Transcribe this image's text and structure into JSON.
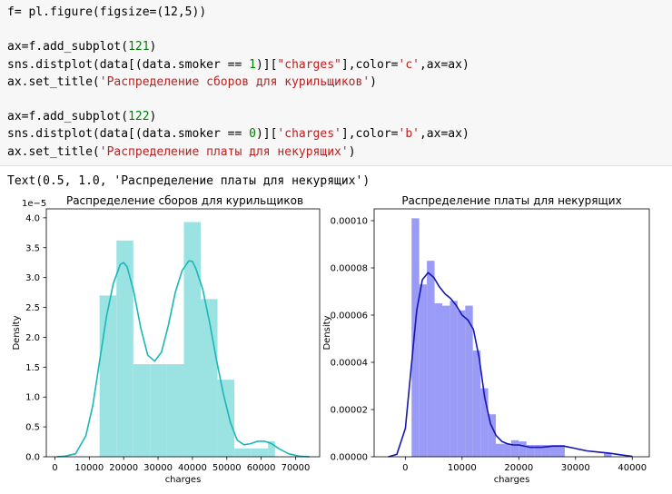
{
  "code": {
    "lines": [
      [
        {
          "t": "f= pl.figure(figsize=(12,5))",
          "c": ""
        }
      ],
      [
        {
          "t": "",
          "c": ""
        }
      ],
      [
        {
          "t": "ax=f.add_subplot(",
          "c": ""
        },
        {
          "t": "121",
          "c": "n"
        },
        {
          "t": ")",
          "c": ""
        }
      ],
      [
        {
          "t": "sns.distplot(data[(data.smoker == ",
          "c": ""
        },
        {
          "t": "1",
          "c": "n"
        },
        {
          "t": ")][",
          "c": ""
        },
        {
          "t": "\"charges\"",
          "c": "s"
        },
        {
          "t": "],color=",
          "c": ""
        },
        {
          "t": "'c'",
          "c": "s"
        },
        {
          "t": ",ax=ax)",
          "c": ""
        }
      ],
      [
        {
          "t": "ax.set_title(",
          "c": ""
        },
        {
          "t": "'Распределение сборов для курильщиков'",
          "c": "s"
        },
        {
          "t": ")",
          "c": ""
        }
      ],
      [
        {
          "t": "",
          "c": ""
        }
      ],
      [
        {
          "t": "ax=f.add_subplot(",
          "c": ""
        },
        {
          "t": "122",
          "c": "n"
        },
        {
          "t": ")",
          "c": ""
        }
      ],
      [
        {
          "t": "sns.distplot(data[(data.smoker == ",
          "c": ""
        },
        {
          "t": "0",
          "c": "n"
        },
        {
          "t": ")][",
          "c": ""
        },
        {
          "t": "'charges'",
          "c": "s"
        },
        {
          "t": "],color=",
          "c": ""
        },
        {
          "t": "'b'",
          "c": "s"
        },
        {
          "t": ",ax=ax)",
          "c": ""
        }
      ],
      [
        {
          "t": "ax.set_title(",
          "c": ""
        },
        {
          "t": "'Распределение платы для некурящих'",
          "c": "s"
        },
        {
          "t": ")",
          "c": ""
        }
      ]
    ]
  },
  "output": {
    "text": "Text(0.5, 1.0, 'Распределение платы для некурящих')"
  },
  "colors": {
    "smoker_hist": "#9be3e2",
    "smoker_line": "#1bb6b6",
    "nonsmoker_hist": "#9a9af7",
    "nonsmoker_line": "#1515b0"
  },
  "chart_data": [
    {
      "type": "bar",
      "title": "Распределение сборов для курильщиков",
      "xlabel": "charges",
      "ylabel": "Density",
      "y_offset_text": "1e−5",
      "xlim": [
        -2500,
        77000
      ],
      "ylim": [
        0,
        4.15
      ],
      "xticks": [
        0,
        10000,
        20000,
        30000,
        40000,
        50000,
        60000,
        70000
      ],
      "xticklabels": [
        "0",
        "10000",
        "20000",
        "30000",
        "40000",
        "50000",
        "60000",
        "70000"
      ],
      "yticks": [
        0,
        0.5,
        1.0,
        1.5,
        2.0,
        2.5,
        3.0,
        3.5,
        4.0
      ],
      "yticklabels": [
        "0.0",
        "0.5",
        "1.0",
        "1.5",
        "2.0",
        "2.5",
        "3.0",
        "3.5",
        "4.0"
      ],
      "hist_bins": [
        {
          "x0": 13000,
          "x1": 17900,
          "h": 2.7
        },
        {
          "x0": 17900,
          "x1": 22800,
          "h": 3.62
        },
        {
          "x0": 22800,
          "x1": 27700,
          "h": 1.55
        },
        {
          "x0": 27700,
          "x1": 32600,
          "h": 1.55
        },
        {
          "x0": 32600,
          "x1": 37500,
          "h": 1.55
        },
        {
          "x0": 37500,
          "x1": 42400,
          "h": 3.93
        },
        {
          "x0": 42400,
          "x1": 47300,
          "h": 2.64
        },
        {
          "x0": 47300,
          "x1": 52200,
          "h": 1.29
        },
        {
          "x0": 52200,
          "x1": 57100,
          "h": 0.14
        },
        {
          "x0": 57100,
          "x1": 62000,
          "h": 0.14
        },
        {
          "x0": 62000,
          "x1": 64000,
          "h": 0.26
        }
      ],
      "kde": {
        "x": [
          500,
          3000,
          6000,
          9000,
          11000,
          13000,
          15000,
          17000,
          19000,
          20000,
          21000,
          23000,
          25000,
          27000,
          29000,
          31000,
          33000,
          35000,
          37000,
          39000,
          40000,
          41000,
          43000,
          45000,
          47000,
          49000,
          51000,
          53000,
          55000,
          57000,
          59000,
          61000,
          63000,
          65000,
          68000,
          71000,
          74000
        ],
        "y": [
          0.0,
          0.01,
          0.05,
          0.35,
          0.85,
          1.6,
          2.35,
          2.9,
          3.22,
          3.25,
          3.18,
          2.75,
          2.15,
          1.7,
          1.6,
          1.75,
          2.2,
          2.75,
          3.12,
          3.28,
          3.27,
          3.15,
          2.8,
          2.25,
          1.62,
          1.05,
          0.58,
          0.28,
          0.2,
          0.22,
          0.26,
          0.26,
          0.22,
          0.14,
          0.05,
          0.01,
          0.0
        ]
      }
    },
    {
      "type": "bar",
      "title": "Распределение платы для некурящих",
      "xlabel": "charges",
      "ylabel": "Density",
      "xlim": [
        -5500,
        43000
      ],
      "ylim": [
        0,
        0.000105
      ],
      "xticks": [
        0,
        10000,
        20000,
        30000,
        40000
      ],
      "xticklabels": [
        "0",
        "10000",
        "20000",
        "30000",
        "40000"
      ],
      "yticks": [
        0,
        2e-05,
        4e-05,
        6e-05,
        8e-05,
        0.0001
      ],
      "yticklabels": [
        "0.00000",
        "0.00002",
        "0.00004",
        "0.00006",
        "0.00008",
        "0.00010"
      ],
      "hist_bins": [
        {
          "x0": 1100,
          "x1": 2450,
          "h": 0.000101
        },
        {
          "x0": 2450,
          "x1": 3800,
          "h": 7.3e-05
        },
        {
          "x0": 3800,
          "x1": 5150,
          "h": 8.3e-05
        },
        {
          "x0": 5150,
          "x1": 6500,
          "h": 6.5e-05
        },
        {
          "x0": 6500,
          "x1": 7850,
          "h": 6.4e-05
        },
        {
          "x0": 7850,
          "x1": 9200,
          "h": 6.6e-05
        },
        {
          "x0": 9200,
          "x1": 10550,
          "h": 6.2e-05
        },
        {
          "x0": 10550,
          "x1": 11900,
          "h": 6.4e-05
        },
        {
          "x0": 11900,
          "x1": 13250,
          "h": 4.5e-05
        },
        {
          "x0": 13250,
          "x1": 14600,
          "h": 2.9e-05
        },
        {
          "x0": 14600,
          "x1": 15950,
          "h": 1.8e-05
        },
        {
          "x0": 15950,
          "x1": 17300,
          "h": 5.5e-06
        },
        {
          "x0": 17300,
          "x1": 18650,
          "h": 5.5e-06
        },
        {
          "x0": 18650,
          "x1": 20000,
          "h": 7e-06
        },
        {
          "x0": 20000,
          "x1": 21350,
          "h": 6.5e-06
        },
        {
          "x0": 21350,
          "x1": 22700,
          "h": 5e-06
        },
        {
          "x0": 22700,
          "x1": 24050,
          "h": 5e-06
        },
        {
          "x0": 24050,
          "x1": 25400,
          "h": 5e-06
        },
        {
          "x0": 25400,
          "x1": 26750,
          "h": 5e-06
        },
        {
          "x0": 26750,
          "x1": 28100,
          "h": 5e-06
        },
        {
          "x0": 35000,
          "x1": 36350,
          "h": 1.5e-06
        }
      ],
      "kde": {
        "x": [
          -3000,
          -1500,
          0,
          1000,
          2000,
          3000,
          4000,
          5000,
          6000,
          7000,
          8000,
          9000,
          10000,
          11000,
          12000,
          13000,
          14000,
          15000,
          16000,
          17000,
          18000,
          19000,
          20000,
          22000,
          24000,
          26000,
          28000,
          30000,
          32000,
          34000,
          36000,
          38000,
          40000
        ],
        "y": [
          0.0,
          1e-06,
          1.2e-05,
          3.7e-05,
          6.2e-05,
          7.5e-05,
          7.8e-05,
          7.6e-05,
          7.2e-05,
          6.9e-05,
          6.7e-05,
          6.4e-05,
          6e-05,
          5.8e-05,
          5.4e-05,
          4.2e-05,
          2.5e-05,
          1.4e-05,
          9e-06,
          6.5e-06,
          5.5e-06,
          5e-06,
          5e-06,
          4e-06,
          4e-06,
          4.5e-06,
          4.5e-06,
          3.5e-06,
          2.5e-06,
          2e-06,
          1.5e-06,
          8e-07,
          2e-07
        ]
      }
    }
  ]
}
